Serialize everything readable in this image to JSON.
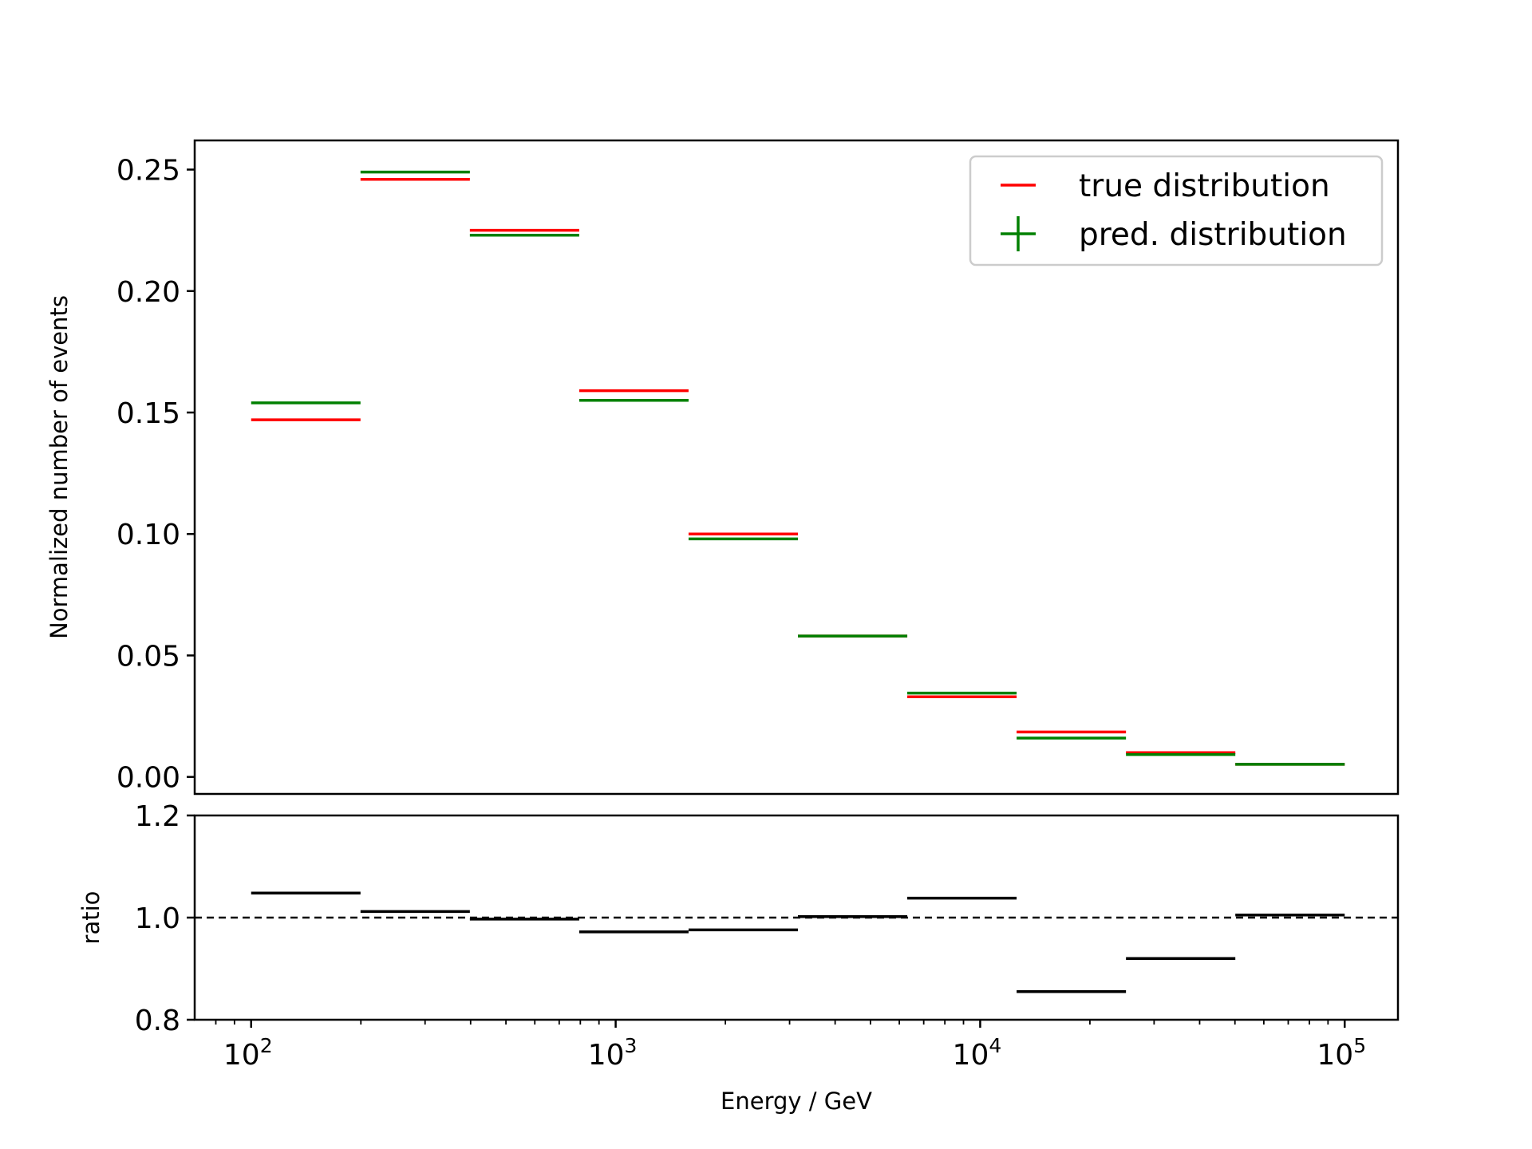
{
  "chart_data": [
    {
      "type": "step",
      "panel": "main",
      "x_scale": "log",
      "x_bin_edges": [
        100,
        199.53,
        398.11,
        794.33,
        1584.89,
        3162.28,
        6309.57,
        12589.25,
        25118.86,
        50118.72,
        100000
      ],
      "xlim": [
        70,
        140000
      ],
      "ylim": [
        -0.007,
        0.262
      ],
      "ylabel": "Normalized number of events",
      "y_ticks": [
        0.0,
        0.05,
        0.1,
        0.15,
        0.2,
        0.25
      ],
      "y_tick_labels": [
        "0.00",
        "0.05",
        "0.10",
        "0.15",
        "0.20",
        "0.25"
      ],
      "series": [
        {
          "name": "true distribution",
          "color": "#ff0000",
          "marker": "hline",
          "values": [
            0.147,
            0.246,
            0.225,
            0.159,
            0.1,
            0.058,
            0.033,
            0.0185,
            0.01,
            0.0052
          ]
        },
        {
          "name": "pred. distribution",
          "color": "#008000",
          "marker": "plus",
          "values": [
            0.154,
            0.249,
            0.223,
            0.155,
            0.098,
            0.058,
            0.0345,
            0.016,
            0.0092,
            0.0052
          ]
        }
      ],
      "legend": {
        "position": "top-right"
      }
    },
    {
      "type": "step",
      "panel": "ratio",
      "x_scale": "log",
      "x_bin_edges": [
        100,
        199.53,
        398.11,
        794.33,
        1584.89,
        3162.28,
        6309.57,
        12589.25,
        25118.86,
        50118.72,
        100000
      ],
      "xlim": [
        70,
        140000
      ],
      "ylim": [
        0.8,
        1.2
      ],
      "xlabel": "Energy / GeV",
      "ylabel": "ratio",
      "y_ticks": [
        0.8,
        1.0,
        1.2
      ],
      "y_tick_labels": [
        "0.8",
        "1.0",
        "1.2"
      ],
      "x_ticks": [
        100,
        1000,
        10000,
        100000
      ],
      "x_tick_labels": [
        {
          "base": "10",
          "exp": "2"
        },
        {
          "base": "10",
          "exp": "3"
        },
        {
          "base": "10",
          "exp": "4"
        },
        {
          "base": "10",
          "exp": "5"
        }
      ],
      "reference_line": {
        "y": 1.0,
        "style": "dashed",
        "color": "#000000"
      },
      "series": [
        {
          "color": "#000000",
          "values": [
            1.048,
            1.012,
            0.997,
            0.972,
            0.976,
            1.002,
            1.038,
            0.855,
            0.92,
            1.005
          ]
        }
      ]
    }
  ]
}
